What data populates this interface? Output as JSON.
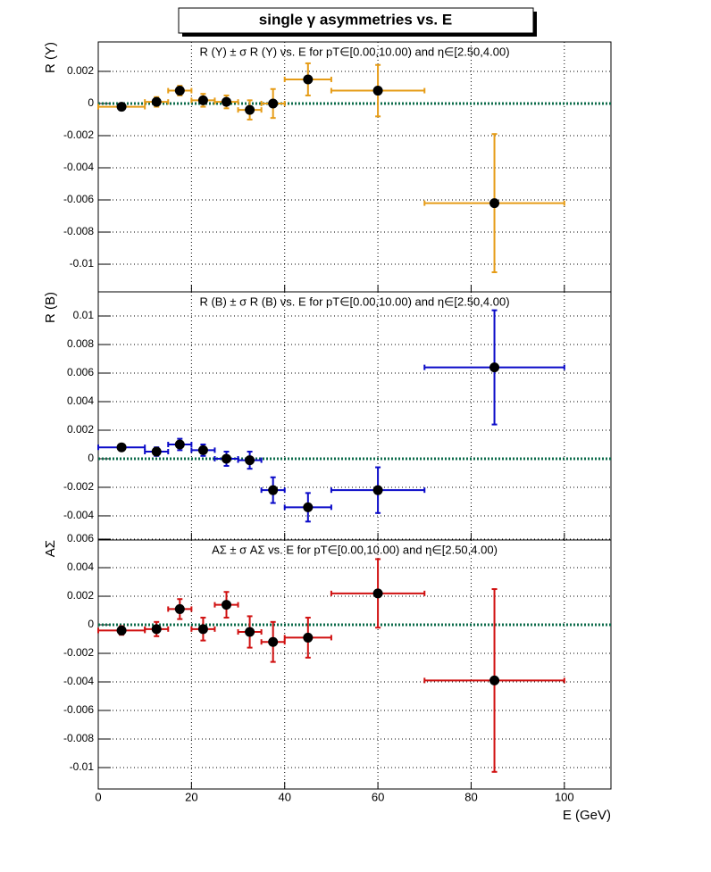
{
  "title": "single  γ asymmetries vs. E",
  "chart_data": [
    {
      "type": "scatter",
      "title": "R (Y) ± σ R (Y) vs. E for pT∈[0.00,10.00) and η∈[2.50,4.00)",
      "ylabel": "R (Y)",
      "color": "#e69c17",
      "x": [
        5,
        12.5,
        17.5,
        22.5,
        27.5,
        32.5,
        37.5,
        45,
        60,
        85
      ],
      "xerr": [
        5,
        2.5,
        2.5,
        2.5,
        2.5,
        2.5,
        2.5,
        5,
        10,
        15
      ],
      "values": [
        -0.0002,
        0.0001,
        0.0008,
        0.0002,
        0.0001,
        -0.0004,
        0.0,
        0.0015,
        0.0008,
        -0.0062
      ],
      "yerr": [
        0.0002,
        0.0003,
        0.0003,
        0.0004,
        0.0004,
        0.0006,
        0.0009,
        0.001,
        0.0016,
        0.0043
      ],
      "ylim": [
        -0.01172,
        0.00383
      ],
      "yticks": [
        -0.01,
        -0.008,
        -0.006,
        -0.004,
        -0.002,
        0,
        0.002
      ],
      "grid": true
    },
    {
      "type": "scatter",
      "title": "R (B) ± σ R (B) vs. E for pT∈[0.00,10.00) and η∈[2.50,4.00)",
      "ylabel": "R (B)",
      "color": "#0a0ac8",
      "x": [
        5,
        12.5,
        17.5,
        22.5,
        27.5,
        32.5,
        37.5,
        45,
        60,
        85
      ],
      "xerr": [
        5,
        2.5,
        2.5,
        2.5,
        2.5,
        2.5,
        2.5,
        5,
        10,
        15
      ],
      "values": [
        0.0008,
        0.0005,
        0.001,
        0.0006,
        0.0,
        -0.0001,
        -0.0022,
        -0.0034,
        -0.0022,
        0.0064
      ],
      "yerr": [
        0.0002,
        0.0003,
        0.0004,
        0.0004,
        0.0005,
        0.0006,
        0.0009,
        0.001,
        0.0016,
        0.004
      ],
      "ylim": [
        -0.00569,
        0.01169
      ],
      "yticks": [
        -0.004,
        -0.002,
        0,
        0.002,
        0.004,
        0.006,
        0.008,
        0.01
      ],
      "grid": true
    },
    {
      "type": "scatter",
      "title": "AΣ ± σ AΣ vs. E for pT∈[0.00,10.00) and η∈[2.50,4.00)",
      "ylabel": "AΣ",
      "color": "#d01010",
      "x": [
        5,
        12.5,
        17.5,
        22.5,
        27.5,
        32.5,
        37.5,
        45,
        60,
        85
      ],
      "xerr": [
        5,
        2.5,
        2.5,
        2.5,
        2.5,
        2.5,
        2.5,
        5,
        10,
        15
      ],
      "values": [
        -0.0004,
        -0.0003,
        0.0011,
        -0.0003,
        0.0014,
        -0.0005,
        -0.0012,
        -0.0009,
        0.0022,
        -0.0039
      ],
      "yerr": [
        0.0003,
        0.0005,
        0.0007,
        0.0008,
        0.0009,
        0.0011,
        0.0014,
        0.0014,
        0.0024,
        0.0064
      ],
      "ylim": [
        -0.0115,
        0.00594
      ],
      "yticks": [
        -0.01,
        -0.008,
        -0.006,
        -0.004,
        -0.002,
        0,
        0.002,
        0.004,
        0.006
      ],
      "grid": true,
      "xlabel": "E (GeV)",
      "xlim": [
        0,
        110
      ],
      "xticks": [
        0,
        20,
        40,
        60,
        80,
        100
      ]
    }
  ]
}
